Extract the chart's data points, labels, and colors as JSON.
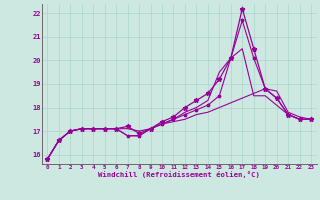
{
  "xlabel": "Windchill (Refroidissement éolien,°C)",
  "bg_color": "#cce8e0",
  "grid_color": "#aad4cc",
  "line_color": "#990099",
  "xlim": [
    -0.5,
    23.5
  ],
  "ylim": [
    15.6,
    22.4
  ],
  "xticks": [
    0,
    1,
    2,
    3,
    4,
    5,
    6,
    7,
    8,
    9,
    10,
    11,
    12,
    13,
    14,
    15,
    16,
    17,
    18,
    19,
    20,
    21,
    22,
    23
  ],
  "yticks": [
    16,
    17,
    18,
    19,
    20,
    21,
    22
  ],
  "curve1_x": [
    0,
    1,
    2,
    3,
    4,
    5,
    6,
    7,
    8,
    9,
    10,
    11,
    12,
    13,
    14,
    15,
    16,
    17,
    18,
    19,
    20,
    21,
    22,
    23
  ],
  "curve1_y": [
    15.8,
    16.6,
    17.0,
    17.1,
    17.1,
    17.1,
    17.1,
    16.8,
    16.8,
    17.1,
    17.3,
    17.5,
    17.7,
    17.9,
    18.1,
    18.5,
    20.1,
    21.7,
    20.1,
    18.8,
    18.4,
    17.7,
    17.5,
    17.5
  ],
  "curve2_x": [
    0,
    1,
    2,
    3,
    4,
    5,
    6,
    7,
    8,
    9,
    10,
    11,
    12,
    13,
    14,
    15,
    16,
    17,
    18,
    19,
    20,
    21,
    22,
    23
  ],
  "curve2_y": [
    15.8,
    16.6,
    17.0,
    17.1,
    17.1,
    17.1,
    17.1,
    16.8,
    16.8,
    17.1,
    17.3,
    17.5,
    17.8,
    18.0,
    18.3,
    19.5,
    20.1,
    20.5,
    18.5,
    18.5,
    18.1,
    17.7,
    17.5,
    17.5
  ],
  "curve3_x": [
    0,
    1,
    2,
    3,
    4,
    5,
    6,
    7,
    8,
    9,
    10,
    11,
    12,
    13,
    14,
    15,
    16,
    17,
    18,
    19,
    20,
    21,
    22,
    23
  ],
  "curve3_y": [
    15.8,
    16.6,
    17.0,
    17.1,
    17.1,
    17.1,
    17.1,
    17.2,
    16.9,
    17.1,
    17.4,
    17.6,
    18.0,
    18.3,
    18.6,
    19.2,
    20.1,
    22.2,
    20.5,
    18.8,
    18.4,
    17.7,
    17.5,
    17.5
  ],
  "curve4_x": [
    0,
    1,
    2,
    3,
    4,
    5,
    6,
    7,
    8,
    9,
    10,
    11,
    12,
    13,
    14,
    15,
    16,
    17,
    18,
    19,
    20,
    21,
    22,
    23
  ],
  "curve4_y": [
    15.8,
    16.6,
    17.0,
    17.1,
    17.1,
    17.1,
    17.1,
    17.1,
    17.0,
    17.1,
    17.3,
    17.4,
    17.5,
    17.7,
    17.8,
    18.0,
    18.2,
    18.4,
    18.6,
    18.8,
    18.7,
    17.8,
    17.6,
    17.5
  ]
}
